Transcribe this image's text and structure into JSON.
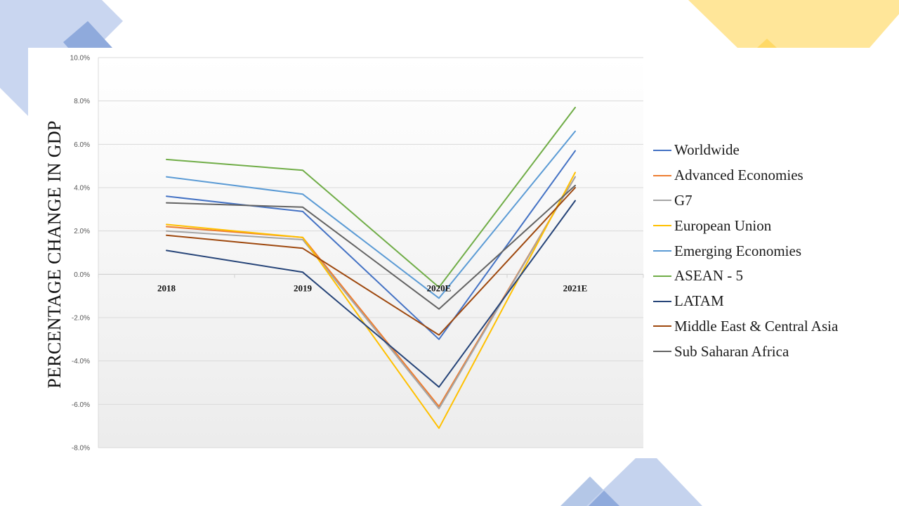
{
  "chart_data": {
    "type": "line",
    "ylabel": "PERCENTAGE CHANGE IN GDP",
    "categories": [
      "2018",
      "2019",
      "2020E",
      "2021E"
    ],
    "ylim": [
      -8,
      10
    ],
    "ytick_step": 2,
    "ytick_format": "percent_1dp",
    "grid": true,
    "legend_position": "right",
    "series": [
      {
        "name": "Worldwide",
        "color": "#4472c4",
        "values": [
          3.6,
          2.9,
          -3.0,
          5.7
        ]
      },
      {
        "name": "Advanced Economies",
        "color": "#ed7d31",
        "values": [
          2.2,
          1.7,
          -6.1,
          4.5
        ]
      },
      {
        "name": "G7",
        "color": "#a5a5a5",
        "values": [
          2.0,
          1.6,
          -6.2,
          4.5
        ]
      },
      {
        "name": "European Union",
        "color": "#ffc000",
        "values": [
          2.3,
          1.7,
          -7.1,
          4.7
        ]
      },
      {
        "name": "Emerging Economies",
        "color": "#5b9bd5",
        "values": [
          4.5,
          3.7,
          -1.1,
          6.6
        ]
      },
      {
        "name": "ASEAN - 5",
        "color": "#70ad47",
        "values": [
          5.3,
          4.8,
          -0.6,
          7.7
        ]
      },
      {
        "name": "LATAM",
        "color": "#264478",
        "values": [
          1.1,
          0.1,
          -5.2,
          3.4
        ]
      },
      {
        "name": "Middle East & Central Asia",
        "color": "#9e480e",
        "values": [
          1.8,
          1.2,
          -2.8,
          4.0
        ]
      },
      {
        "name": "Sub Saharan Africa",
        "color": "#636363",
        "values": [
          3.3,
          3.1,
          -1.6,
          4.1
        ]
      }
    ]
  },
  "decor_colors": {
    "blue_light": "#c5d3ee",
    "blue_mid": "#a9bde6",
    "blue_dark": "#8ea8dc",
    "yellow_light": "#ffe69b",
    "yellow_mid": "#ffd966"
  }
}
